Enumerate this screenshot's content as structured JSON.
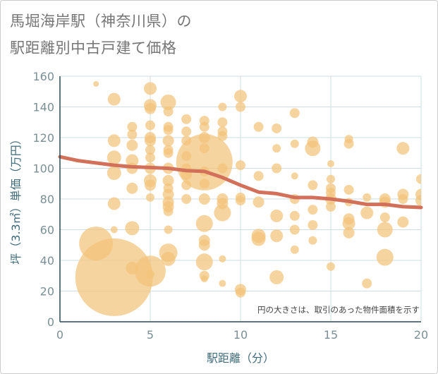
{
  "title_line1": "馬堀海岸駅（神奈川県）の",
  "title_line2": "駅距離別中古戸建て価格",
  "chart_data": {
    "type": "scatter",
    "xlabel": "駅距離（分）",
    "ylabel": "坪（3.3㎡）単価（万円）",
    "xlim": [
      0,
      20
    ],
    "ylim": [
      0,
      160
    ],
    "xticks": [
      0,
      5,
      10,
      15,
      20
    ],
    "yticks": [
      0,
      20,
      40,
      60,
      80,
      100,
      120,
      140,
      160
    ],
    "grid": true,
    "note": "円の大きさは、取引のあった物件面積を示す",
    "colors": {
      "bubble": "#f2c47a",
      "trend": "#d2705a",
      "axis": "#2b4a57",
      "grid": "#cfdde2"
    },
    "bubbles": [
      {
        "x": 2,
        "y": 155,
        "r": 4
      },
      {
        "x": 2,
        "y": 51,
        "r": 24
      },
      {
        "x": 3,
        "y": 29,
        "r": 55
      },
      {
        "x": 3,
        "y": 145,
        "r": 9
      },
      {
        "x": 3,
        "y": 118,
        "r": 9
      },
      {
        "x": 3,
        "y": 107,
        "r": 10
      },
      {
        "x": 3,
        "y": 97,
        "r": 10
      },
      {
        "x": 3,
        "y": 77,
        "r": 9
      },
      {
        "x": 3,
        "y": 60,
        "r": 5
      },
      {
        "x": 4,
        "y": 127,
        "r": 7
      },
      {
        "x": 4,
        "y": 122,
        "r": 7
      },
      {
        "x": 4,
        "y": 115,
        "r": 8
      },
      {
        "x": 4,
        "y": 105,
        "r": 9
      },
      {
        "x": 4,
        "y": 100,
        "r": 8
      },
      {
        "x": 4,
        "y": 87,
        "r": 8
      },
      {
        "x": 4,
        "y": 61,
        "r": 10
      },
      {
        "x": 4,
        "y": 35,
        "r": 9
      },
      {
        "x": 5,
        "y": 152,
        "r": 9
      },
      {
        "x": 5,
        "y": 141,
        "r": 9
      },
      {
        "x": 5,
        "y": 139,
        "r": 8
      },
      {
        "x": 5,
        "y": 128,
        "r": 7
      },
      {
        "x": 5,
        "y": 120,
        "r": 8
      },
      {
        "x": 5,
        "y": 118,
        "r": 8
      },
      {
        "x": 5,
        "y": 112,
        "r": 7
      },
      {
        "x": 5,
        "y": 107,
        "r": 7
      },
      {
        "x": 5,
        "y": 100,
        "r": 8
      },
      {
        "x": 5,
        "y": 92,
        "r": 9
      },
      {
        "x": 5,
        "y": 89,
        "r": 8
      },
      {
        "x": 5,
        "y": 81,
        "r": 6
      },
      {
        "x": 5,
        "y": 33,
        "r": 22
      },
      {
        "x": 5,
        "y": 31,
        "r": 6
      },
      {
        "x": 6,
        "y": 143,
        "r": 11
      },
      {
        "x": 6,
        "y": 137,
        "r": 7
      },
      {
        "x": 6,
        "y": 127,
        "r": 7
      },
      {
        "x": 6,
        "y": 125,
        "r": 7
      },
      {
        "x": 6,
        "y": 118,
        "r": 8
      },
      {
        "x": 6,
        "y": 112,
        "r": 7
      },
      {
        "x": 6,
        "y": 110,
        "r": 7
      },
      {
        "x": 6,
        "y": 100,
        "r": 8
      },
      {
        "x": 6,
        "y": 92,
        "r": 8
      },
      {
        "x": 6,
        "y": 87,
        "r": 7
      },
      {
        "x": 6,
        "y": 83,
        "r": 8
      },
      {
        "x": 6,
        "y": 78,
        "r": 8
      },
      {
        "x": 6,
        "y": 75,
        "r": 8
      },
      {
        "x": 6,
        "y": 72,
        "r": 7
      },
      {
        "x": 6,
        "y": 60,
        "r": 6
      },
      {
        "x": 6,
        "y": 45,
        "r": 13
      },
      {
        "x": 6,
        "y": 41,
        "r": 10
      },
      {
        "x": 7,
        "y": 132,
        "r": 7
      },
      {
        "x": 7,
        "y": 124,
        "r": 7
      },
      {
        "x": 7,
        "y": 118,
        "r": 7
      },
      {
        "x": 7,
        "y": 108,
        "r": 7
      },
      {
        "x": 7,
        "y": 100,
        "r": 7
      },
      {
        "x": 7,
        "y": 96,
        "r": 8
      },
      {
        "x": 7,
        "y": 89,
        "r": 7
      },
      {
        "x": 7,
        "y": 80,
        "r": 7
      },
      {
        "x": 8,
        "y": 131,
        "r": 7
      },
      {
        "x": 8,
        "y": 127,
        "r": 7
      },
      {
        "x": 8,
        "y": 120,
        "r": 8
      },
      {
        "x": 8,
        "y": 113,
        "r": 7
      },
      {
        "x": 8,
        "y": 104,
        "r": 40
      },
      {
        "x": 8,
        "y": 98,
        "r": 7
      },
      {
        "x": 8,
        "y": 90,
        "r": 7
      },
      {
        "x": 8,
        "y": 80,
        "r": 8
      },
      {
        "x": 8,
        "y": 64,
        "r": 12
      },
      {
        "x": 8,
        "y": 53,
        "r": 8
      },
      {
        "x": 8,
        "y": 50,
        "r": 8
      },
      {
        "x": 8,
        "y": 39,
        "r": 12
      },
      {
        "x": 8,
        "y": 30,
        "r": 7
      },
      {
        "x": 8,
        "y": 28,
        "r": 5
      },
      {
        "x": 9,
        "y": 140,
        "r": 6
      },
      {
        "x": 9,
        "y": 130,
        "r": 7
      },
      {
        "x": 9,
        "y": 124,
        "r": 7
      },
      {
        "x": 9,
        "y": 121,
        "r": 7
      },
      {
        "x": 9,
        "y": 100,
        "r": 7
      },
      {
        "x": 9,
        "y": 80,
        "r": 8
      },
      {
        "x": 9,
        "y": 77,
        "r": 8
      },
      {
        "x": 9,
        "y": 71,
        "r": 12
      },
      {
        "x": 9,
        "y": 41,
        "r": 5
      },
      {
        "x": 9,
        "y": 25,
        "r": 5
      },
      {
        "x": 10,
        "y": 147,
        "r": 9
      },
      {
        "x": 10,
        "y": 140,
        "r": 7
      },
      {
        "x": 10,
        "y": 102,
        "r": 7
      },
      {
        "x": 10,
        "y": 81,
        "r": 7
      },
      {
        "x": 10,
        "y": 79,
        "r": 7
      },
      {
        "x": 10,
        "y": 21,
        "r": 8
      },
      {
        "x": 10,
        "y": 19,
        "r": 7
      },
      {
        "x": 11,
        "y": 127,
        "r": 7
      },
      {
        "x": 11,
        "y": 95,
        "r": 7
      },
      {
        "x": 11,
        "y": 78,
        "r": 8
      },
      {
        "x": 11,
        "y": 56,
        "r": 10
      },
      {
        "x": 11,
        "y": 54,
        "r": 10
      },
      {
        "x": 12,
        "y": 126,
        "r": 7
      },
      {
        "x": 12,
        "y": 113,
        "r": 6
      },
      {
        "x": 12,
        "y": 100,
        "r": 7
      },
      {
        "x": 12,
        "y": 69,
        "r": 9
      },
      {
        "x": 12,
        "y": 56,
        "r": 9
      },
      {
        "x": 12,
        "y": 29,
        "r": 10
      },
      {
        "x": 13,
        "y": 136,
        "r": 7
      },
      {
        "x": 13,
        "y": 116,
        "r": 6
      },
      {
        "x": 13,
        "y": 95,
        "r": 5
      },
      {
        "x": 13,
        "y": 80,
        "r": 7
      },
      {
        "x": 13,
        "y": 69,
        "r": 7
      },
      {
        "x": 13,
        "y": 60,
        "r": 7
      },
      {
        "x": 13,
        "y": 47,
        "r": 6
      },
      {
        "x": 14,
        "y": 117,
        "r": 8
      },
      {
        "x": 14,
        "y": 113,
        "r": 11
      },
      {
        "x": 14,
        "y": 89,
        "r": 7
      },
      {
        "x": 14,
        "y": 73,
        "r": 7
      },
      {
        "x": 14,
        "y": 63,
        "r": 7
      },
      {
        "x": 14,
        "y": 53,
        "r": 6
      },
      {
        "x": 15,
        "y": 103,
        "r": 5
      },
      {
        "x": 15,
        "y": 93,
        "r": 6
      },
      {
        "x": 15,
        "y": 87,
        "r": 7
      },
      {
        "x": 15,
        "y": 84,
        "r": 7
      },
      {
        "x": 15,
        "y": 80,
        "r": 8
      },
      {
        "x": 15,
        "y": 75,
        "r": 7
      },
      {
        "x": 15,
        "y": 36,
        "r": 6
      },
      {
        "x": 16,
        "y": 119,
        "r": 6
      },
      {
        "x": 16,
        "y": 116,
        "r": 7
      },
      {
        "x": 16,
        "y": 86,
        "r": 7
      },
      {
        "x": 16,
        "y": 78,
        "r": 6
      },
      {
        "x": 16,
        "y": 67,
        "r": 8
      },
      {
        "x": 16,
        "y": 64,
        "r": 9
      },
      {
        "x": 16,
        "y": 58,
        "r": 8
      },
      {
        "x": 17,
        "y": 81,
        "r": 6
      },
      {
        "x": 17,
        "y": 71,
        "r": 9
      },
      {
        "x": 17,
        "y": 25,
        "r": 7
      },
      {
        "x": 18,
        "y": 80,
        "r": 8
      },
      {
        "x": 18,
        "y": 78,
        "r": 8
      },
      {
        "x": 18,
        "y": 68,
        "r": 7
      },
      {
        "x": 18,
        "y": 60,
        "r": 11
      },
      {
        "x": 18,
        "y": 42,
        "r": 12
      },
      {
        "x": 19,
        "y": 113,
        "r": 9
      },
      {
        "x": 19,
        "y": 83,
        "r": 8
      },
      {
        "x": 19,
        "y": 80,
        "r": 7
      },
      {
        "x": 19,
        "y": 65,
        "r": 8
      },
      {
        "x": 20,
        "y": 93,
        "r": 7
      },
      {
        "x": 20,
        "y": 83,
        "r": 8
      },
      {
        "x": 20,
        "y": 79,
        "r": 8
      }
    ],
    "trend": {
      "x": [
        0,
        1,
        2,
        3,
        4,
        5,
        6,
        7,
        8,
        9,
        10,
        11,
        12,
        13,
        14,
        15,
        16,
        17,
        18,
        19,
        20
      ],
      "y": [
        107.5,
        105,
        103.5,
        102,
        101,
        100.5,
        100,
        98.5,
        98,
        94,
        89,
        84.5,
        83.5,
        81,
        81,
        80,
        78.5,
        76.5,
        76.5,
        75,
        74.5
      ]
    }
  }
}
